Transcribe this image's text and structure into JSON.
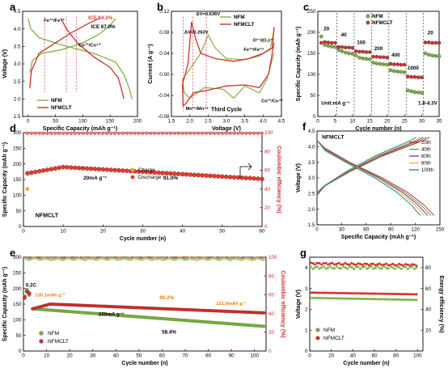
{
  "panels": {
    "a": {
      "label": "a",
      "xlabel": "Specific Capacity (mAh g⁻¹)",
      "ylabel": "Voltage (V)",
      "xlim": [
        -10,
        200
      ],
      "ylim": [
        1.5,
        4.5
      ],
      "xticks": [
        "0",
        "50",
        "100",
        "150",
        "200"
      ],
      "xtick_values": [
        0,
        50,
        100,
        150,
        200
      ],
      "yticks": [
        "1.5",
        "2.0",
        "2.5",
        "3.0",
        "3.5",
        "4.0",
        "4.5"
      ],
      "ytick_values": [
        1.5,
        2.0,
        2.5,
        3.0,
        3.5,
        4.0,
        4.5
      ],
      "annotations": {
        "ice_red": "ICE 84.2%",
        "ice_green": "ICE 67.0%",
        "fe": "Fe³⁺/Fe⁴⁺",
        "co": "Co³⁺/Co⁴⁺"
      },
      "legend": [
        "NFM",
        "NFMCLT"
      ]
    },
    "b": {
      "label": "b",
      "xlabel": "Voltage (V)",
      "ylabel": "Current (A g⁻¹)",
      "xlim": [
        1.5,
        4.5
      ],
      "ylim": [
        -0.08,
        0.12
      ],
      "xticks": [
        "1.5",
        "2.0",
        "2.5",
        "3.0",
        "3.5",
        "4.0",
        "4.5"
      ],
      "xtick_values": [
        1.5,
        2.0,
        2.5,
        3.0,
        3.5,
        4.0,
        4.5
      ],
      "yticks": [
        "-0.08",
        "-0.04",
        "0.00",
        "0.04",
        "0.08",
        "0.12"
      ],
      "ytick_values": [
        -0.08,
        -0.04,
        0.0,
        0.04,
        0.08,
        0.12
      ],
      "annotations": {
        "dv1": "ΔV=0.636V",
        "dv2": "ΔV=0.263V",
        "o2": "O²⁻/(O₂)ⁿ⁻",
        "fe": "Fe³⁺/Fe⁴⁺",
        "mn": "Mn³⁺/Mn⁴⁺",
        "co": "Co³⁺/Co⁴⁺",
        "cycle": "Third Cycle"
      },
      "legend": [
        "NFM",
        "NFMCLT"
      ]
    },
    "c": {
      "label": "c",
      "xlabel": "Cycle number (n)",
      "ylabel": "Specific Capacity (mAh g⁻¹)",
      "xlim": [
        0,
        35
      ],
      "ylim": [
        0,
        250
      ],
      "xticks": [
        "0",
        "5",
        "10",
        "15",
        "20",
        "25",
        "30",
        "35"
      ],
      "xtick_values": [
        0,
        5,
        10,
        15,
        20,
        25,
        30,
        35
      ],
      "yticks": [
        "0",
        "50",
        "100",
        "150",
        "200",
        "250"
      ],
      "ytick_values": [
        0,
        50,
        100,
        150,
        200,
        250
      ],
      "rates": [
        "20",
        "40",
        "100",
        "200",
        "400",
        "1000",
        "20"
      ],
      "unit": "Unit:mA g⁻¹",
      "range": "1.8-4.3V",
      "legend": [
        "NFM",
        "NFMCLT"
      ]
    },
    "d": {
      "label": "d",
      "xlabel": "Cycle number (n)",
      "ylabel": "Specific Capacity (mAh g⁻¹)",
      "y2label": "Coulombic efficiency (%)",
      "xlim": [
        0,
        60
      ],
      "ylim": [
        0,
        300
      ],
      "y2lim": [
        0,
        100
      ],
      "xticks": [
        "0",
        "10",
        "20",
        "30",
        "40",
        "50",
        "60"
      ],
      "xtick_values": [
        0,
        10,
        20,
        30,
        40,
        50,
        60
      ],
      "yticks": [
        "0",
        "50",
        "100",
        "150",
        "200",
        "250",
        "300"
      ],
      "ytick_values": [
        0,
        50,
        100,
        150,
        200,
        250,
        300
      ],
      "y2ticks": [
        "0",
        "20",
        "40",
        "60",
        "80",
        "100"
      ],
      "y2tick_values": [
        0,
        20,
        40,
        60,
        80,
        100
      ],
      "annotations": {
        "rate": "20mA g⁻¹",
        "ret": "91.0%",
        "sample": "NFMCLT"
      },
      "legend": [
        "Charge",
        "Discharge"
      ]
    },
    "e": {
      "label": "e",
      "xlabel": "Cycle number (n)",
      "ylabel": "Specific Capacity (mAh g⁻¹)",
      "y2label": "Coulombic efficiency (%)",
      "xlim": [
        0,
        105
      ],
      "ylim": [
        0,
        300
      ],
      "y2lim": [
        0,
        100
      ],
      "xticks": [
        "0",
        "10",
        "20",
        "30",
        "40",
        "50",
        "60",
        "70",
        "80",
        "90",
        "100"
      ],
      "xtick_values": [
        0,
        10,
        20,
        30,
        40,
        50,
        60,
        70,
        80,
        90,
        100
      ],
      "yticks": [
        "0",
        "50",
        "100",
        "150",
        "200",
        "250",
        "300"
      ],
      "ytick_values": [
        0,
        50,
        100,
        150,
        200,
        250,
        300
      ],
      "y2ticks": [
        "0",
        "20",
        "40",
        "60",
        "80",
        "100"
      ],
      "y2tick_values": [
        0,
        20,
        40,
        60,
        80,
        100
      ],
      "annotations": {
        "c02": "0.2C",
        "cap1": "135.1mAh g⁻¹",
        "ret1": "90.2%",
        "cap2": "121.9mAh g⁻¹",
        "rate": "200mA g⁻¹",
        "ret2": "58.4%"
      },
      "legend": [
        "NFM",
        "NFMCLT"
      ]
    },
    "f": {
      "label": "f",
      "xlabel": "Specific Capacity (mAh g⁻¹)",
      "ylabel": "Voltage (V)",
      "xlim": [
        0,
        150
      ],
      "ylim": [
        1.5,
        4.5
      ],
      "xticks": [
        "0",
        "30",
        "60",
        "90",
        "120",
        "150"
      ],
      "xtick_values": [
        0,
        30,
        60,
        90,
        120,
        150
      ],
      "yticks": [
        "1.5",
        "2.0",
        "2.5",
        "3.0",
        "3.5",
        "4.0",
        "4.5"
      ],
      "ytick_values": [
        1.5,
        2.0,
        2.5,
        3.0,
        3.5,
        4.0,
        4.5
      ],
      "sample": "NFMCLT",
      "legend": [
        "20th",
        "40th",
        "60th",
        "80th",
        "100th"
      ]
    },
    "g": {
      "label": "g",
      "xlabel": "Cycle number (n)",
      "ylabel": "Voltage (V)",
      "y2label": "Energy efficiency (%)",
      "xlim": [
        0,
        105
      ],
      "ylim": [
        0,
        4.5
      ],
      "y2lim": [
        0,
        90
      ],
      "xticks": [
        "0",
        "20",
        "40",
        "60",
        "80",
        "100"
      ],
      "xtick_values": [
        0,
        20,
        40,
        60,
        80,
        100
      ],
      "yticks": [
        "0",
        "1",
        "2",
        "3",
        "4"
      ],
      "ytick_values": [
        0,
        1,
        2,
        3,
        4
      ],
      "y2ticks": [
        "20",
        "40",
        "60",
        "80"
      ],
      "y2tick_values": [
        20,
        40,
        60,
        80
      ],
      "legend": [
        "NFM",
        "NFMCLT"
      ]
    }
  },
  "colors": {
    "nfm": "#7cb342",
    "nfmclt": "#d32f2f",
    "axis": "#000000",
    "annot_red": "#e53935",
    "annot_orange": "#f57c00",
    "charge": "#f0a830",
    "discharge": "#d94030"
  },
  "chart_data": [
    {
      "panel": "a",
      "type": "line",
      "series": [
        {
          "name": "NFM",
          "charge_capacity_end": 160,
          "discharge_capacity_end": 190,
          "voltage_range": [
            2.0,
            4.3
          ]
        },
        {
          "name": "NFMCLT",
          "charge_capacity_end": 135,
          "discharge_capacity_end": 175,
          "voltage_range": [
            2.0,
            4.3
          ]
        }
      ]
    },
    {
      "panel": "b",
      "type": "line",
      "series": [
        {
          "name": "NFM"
        },
        {
          "name": "NFMCLT"
        }
      ]
    },
    {
      "panel": "c",
      "type": "scatter",
      "x": [
        1,
        2,
        3,
        4,
        5,
        6,
        7,
        8,
        9,
        10,
        11,
        12,
        13,
        14,
        15,
        16,
        17,
        18,
        19,
        20,
        21,
        22,
        23,
        24,
        25,
        26,
        27,
        28,
        29,
        30,
        31,
        32,
        33,
        34,
        35
      ],
      "series": [
        {
          "name": "NFM",
          "values": [
            190,
            170,
            168,
            166,
            165,
            158,
            155,
            152,
            150,
            149,
            145,
            140,
            138,
            137,
            136,
            128,
            126,
            125,
            124,
            123,
            110,
            108,
            107,
            106,
            105,
            62,
            60,
            58,
            57,
            56,
            150,
            147,
            145,
            144,
            143
          ]
        },
        {
          "name": "NFMCLT",
          "values": [
            175,
            177,
            176,
            175,
            175,
            165,
            165,
            164,
            164,
            163,
            155,
            154,
            154,
            153,
            153,
            142,
            142,
            141,
            141,
            140,
            125,
            124,
            124,
            123,
            123,
            95,
            94,
            94,
            93,
            93,
            176,
            176,
            175,
            175,
            175
          ]
        }
      ]
    },
    {
      "panel": "d",
      "type": "scatter",
      "x_range": [
        1,
        60
      ],
      "series": [
        {
          "name": "Charge",
          "first_cycle": 120
        },
        {
          "name": "Discharge",
          "start": 170,
          "peak": 190,
          "peak_cycle": 10,
          "end": 152
        },
        {
          "name": "Coulombic efficiency",
          "values_approx": 99.5
        }
      ]
    },
    {
      "panel": "e",
      "type": "scatter",
      "x_range": [
        1,
        105
      ],
      "series": [
        {
          "name": "NFM",
          "initial_02C": [
            175,
            195,
            180
          ],
          "start": 135,
          "end": 79,
          "retention": "58.4%"
        },
        {
          "name": "NFMCLT",
          "initial_02C": [
            170,
            190,
            185
          ],
          "start": 135.1,
          "end": 121.9,
          "retention": "90.2%"
        },
        {
          "name": "Coulombic efficiency",
          "values_approx": 99
        }
      ]
    },
    {
      "panel": "f",
      "type": "line",
      "series": [
        {
          "name": "20th",
          "capacity": 143
        },
        {
          "name": "40th",
          "capacity": 139
        },
        {
          "name": "60th",
          "capacity": 135
        },
        {
          "name": "80th",
          "capacity": 131
        },
        {
          "name": "100th",
          "capacity": 126
        }
      ]
    },
    {
      "panel": "g",
      "type": "scatter",
      "x_range": [
        1,
        100
      ],
      "series": [
        {
          "name": "NFM voltage",
          "start": 2.55,
          "end": 2.45
        },
        {
          "name": "NFMCLT voltage",
          "start": 2.8,
          "end": 2.72
        },
        {
          "name": "NFM energy efficiency",
          "approx": 80
        },
        {
          "name": "NFMCLT energy efficiency",
          "approx": 84
        }
      ]
    }
  ]
}
